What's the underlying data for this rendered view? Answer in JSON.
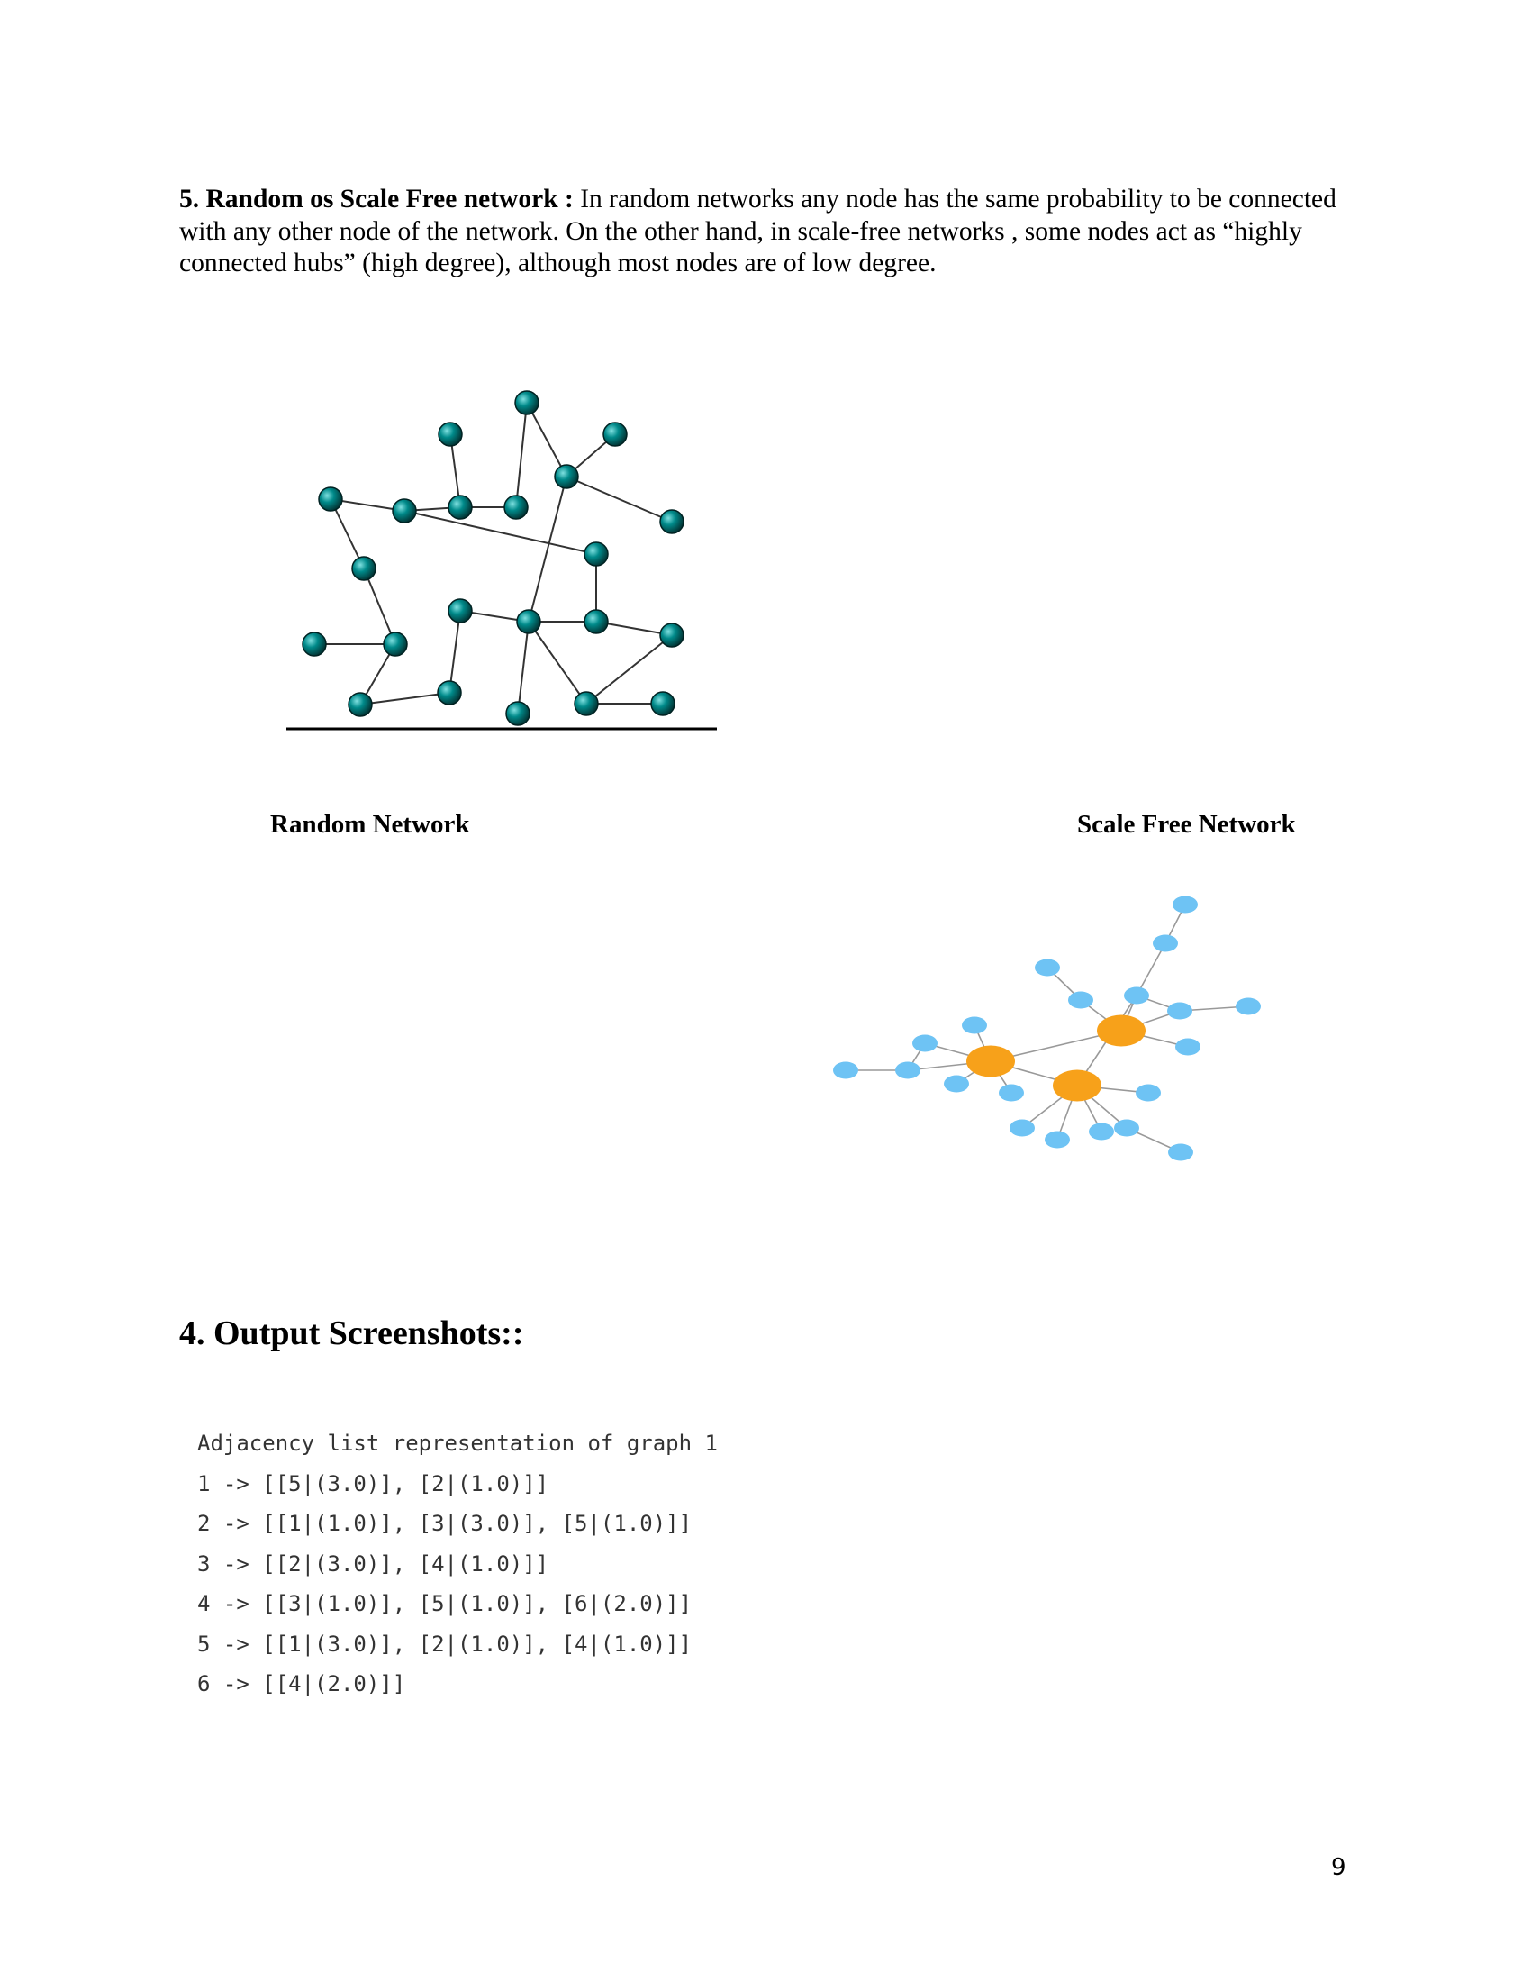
{
  "section": {
    "lead": "5. Random os Scale Free network :",
    "body": " In random networks any node has the same probability to be connected with any other node of the network. On the other hand, in scale-free networks , some nodes act as “highly connected hubs” (high degree), although most nodes are of low degree."
  },
  "figures": {
    "random_caption": "Random Network",
    "scale_free_caption": "Scale Free Network",
    "random_node_color": "#007f7f",
    "hub_color": "#f7a11a",
    "leaf_color": "#6ec3f4",
    "edge_color": "#999999"
  },
  "output": {
    "heading": "4. Output Screenshots::",
    "lines": [
      "Adjacency list representation of graph 1",
      "1 -> [[5|(3.0)], [2|(1.0)]]",
      "2 -> [[1|(1.0)], [3|(3.0)], [5|(1.0)]]",
      "3 -> [[2|(3.0)], [4|(1.0)]]",
      "4 -> [[3|(1.0)], [5|(1.0)], [6|(2.0)]]",
      "5 -> [[1|(3.0)], [2|(1.0)], [4|(1.0)]]",
      "6 -> [[4|(2.0)]]"
    ]
  },
  "page_number": "9"
}
